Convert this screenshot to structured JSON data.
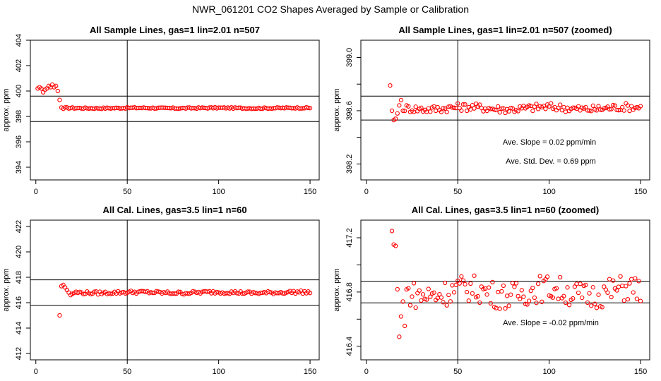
{
  "figure_title": "NWR_061201  CO2 Shapes Averaged by Sample or Calibration",
  "colors": {
    "points": "#ff0000",
    "axes": "#000000",
    "background": "#ffffff"
  },
  "chart_data": [
    {
      "type": "scatter",
      "title": "All Sample Lines, gas=1 lin=2.01 n=507",
      "xlabel": "",
      "ylabel": "approx. ppm",
      "xlim": [
        -3,
        155
      ],
      "ylim": [
        393,
        404
      ],
      "xticks": [
        0,
        50,
        100,
        150
      ],
      "yticks": [
        394,
        396,
        398,
        400,
        402,
        404
      ],
      "ytick_labels": [
        "394",
        "396",
        "398",
        "400",
        "402",
        "404"
      ],
      "hlines": [
        399.6,
        397.6
      ],
      "vline": 50,
      "annotations": [],
      "series_spec": {
        "x_start": 1,
        "x_end": 150,
        "x_step": 1,
        "head": [
          400.2,
          400.3,
          400.2,
          399.9,
          400.1,
          400.2,
          400.4,
          400.3,
          400.5,
          400.3,
          400.4,
          400.0,
          399.3,
          398.7,
          398.6
        ],
        "baseline": 398.66,
        "amplitude": 0.05
      }
    },
    {
      "type": "scatter",
      "title": "All Sample Lines, gas=1 lin=2.01 n=507 (zoomed)",
      "xlabel": "",
      "ylabel": "approx. ppm",
      "xlim": [
        -3,
        155
      ],
      "ylim": [
        398.08,
        399.13
      ],
      "xticks": [
        0,
        50,
        100,
        150
      ],
      "yticks": [
        398.2,
        398.4,
        398.6,
        398.8,
        399.0
      ],
      "ytick_labels": [
        "398.2",
        "",
        "398.6",
        "",
        "399.0"
      ],
      "hlines": [
        398.71,
        398.53
      ],
      "vline": 50,
      "annotations": [
        "Ave. Slope =  0.02  ppm/min",
        "Ave. Std. Dev. =  0.69  ppm"
      ],
      "series_spec": {
        "x_start": 13,
        "x_end": 150,
        "x_step": 1,
        "head": [
          398.79,
          398.6,
          398.53,
          398.54,
          398.58,
          398.64,
          398.68,
          398.6
        ],
        "baseline": 398.62,
        "amplitude": 0.03
      }
    },
    {
      "type": "scatter",
      "title": "All Cal. Lines, gas=3.5 lin=1 n=60",
      "xlabel": "",
      "ylabel": "approx. ppm",
      "xlim": [
        -3,
        155
      ],
      "ylim": [
        411.5,
        422.5
      ],
      "xticks": [
        0,
        50,
        100,
        150
      ],
      "yticks": [
        412,
        414,
        416,
        418,
        420,
        422
      ],
      "ytick_labels": [
        "412",
        "414",
        "416",
        "418",
        "420",
        "422"
      ],
      "hlines": [
        417.8,
        415.8
      ],
      "vline": 50,
      "annotations": [],
      "series_spec": {
        "x_start": 13,
        "x_end": 150,
        "x_step": 1,
        "head": [
          415.0,
          417.3,
          417.4,
          417.2,
          417.0,
          416.8,
          416.6,
          416.7
        ],
        "baseline": 416.8,
        "amplitude": 0.12
      }
    },
    {
      "type": "scatter",
      "title": "All Cal. Lines, gas=3.5 lin=1 n=60 (zoomed)",
      "xlabel": "",
      "ylabel": "approx. ppm",
      "xlim": [
        -3,
        155
      ],
      "ylim": [
        416.3,
        417.33
      ],
      "xticks": [
        0,
        50,
        100,
        150
      ],
      "yticks": [
        416.4,
        416.6,
        416.8,
        417.0,
        417.2
      ],
      "ytick_labels": [
        "416.4",
        "",
        "416.8",
        "",
        "417.2"
      ],
      "hlines": [
        416.88,
        416.72
      ],
      "vline": 50,
      "annotations": [
        "Ave. Slope =  -0.02  ppm/min"
      ],
      "series_spec": {
        "x_start": 14,
        "x_end": 150,
        "x_step": 1,
        "head": [
          417.25,
          417.15,
          417.14,
          416.82,
          416.47,
          416.62,
          416.73,
          416.55
        ],
        "baseline": 416.8,
        "amplitude": 0.1
      }
    }
  ]
}
